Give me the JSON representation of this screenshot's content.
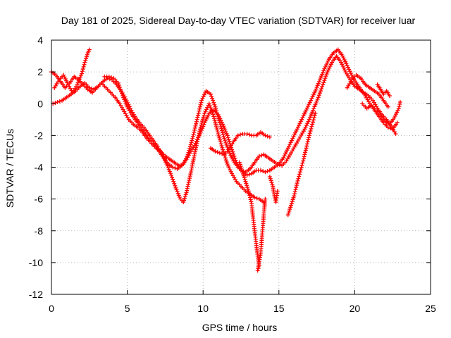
{
  "chart_data": {
    "type": "scatter",
    "title": "Day 181 of 2025, Sidereal Day-to-day VTEC variation (SDTVAR) for receiver luar",
    "xlabel": "GPS time / hours",
    "ylabel": "SDTVAR / TECUs",
    "xlim": [
      0,
      25
    ],
    "ylim": [
      -12,
      4
    ],
    "xticks": [
      0,
      5,
      10,
      15,
      20,
      25
    ],
    "yticks": [
      -12,
      -10,
      -8,
      -6,
      -4,
      -2,
      0,
      2,
      4
    ],
    "grid": true,
    "marker": "+",
    "color": "#ff0000",
    "series": [
      {
        "points": [
          [
            0.0,
            2.0
          ],
          [
            0.3,
            1.8
          ],
          [
            0.6,
            1.4
          ],
          [
            0.9,
            1.0
          ],
          [
            1.2,
            1.3
          ],
          [
            1.5,
            1.7
          ],
          [
            1.8,
            1.5
          ],
          [
            2.1,
            1.2
          ],
          [
            2.4,
            0.9
          ],
          [
            2.7,
            0.7
          ],
          [
            3.0,
            1.0
          ],
          [
            3.3,
            1.3
          ],
          [
            3.6,
            1.0
          ],
          [
            3.9,
            0.7
          ],
          [
            4.2,
            0.4
          ],
          [
            4.5,
            0.0
          ],
          [
            4.8,
            -0.5
          ],
          [
            5.1,
            -1.0
          ],
          [
            5.4,
            -1.3
          ],
          [
            5.7,
            -1.5
          ],
          [
            6.0,
            -1.8
          ],
          [
            6.3,
            -2.2
          ],
          [
            6.6,
            -2.5
          ],
          [
            6.9,
            -2.8
          ],
          [
            7.2,
            -3.0
          ],
          [
            7.5,
            -3.3
          ],
          [
            7.8,
            -3.5
          ],
          [
            8.1,
            -3.7
          ],
          [
            8.4,
            -3.9
          ],
          [
            8.7,
            -3.8
          ],
          [
            9.0,
            -3.2
          ],
          [
            9.3,
            -2.2
          ],
          [
            9.6,
            -1.0
          ],
          [
            9.9,
            0.2
          ],
          [
            10.2,
            0.8
          ],
          [
            10.5,
            0.6
          ],
          [
            10.8,
            -0.2
          ],
          [
            11.1,
            -1.2
          ],
          [
            11.4,
            -2.2
          ],
          [
            11.7,
            -3.0
          ],
          [
            12.0,
            -3.6
          ],
          [
            12.3,
            -4.0
          ],
          [
            12.6,
            -4.3
          ],
          [
            12.9,
            -4.5
          ],
          [
            13.2,
            -4.4
          ],
          [
            13.5,
            -4.2
          ],
          [
            13.8,
            -4.2
          ],
          [
            14.1,
            -4.3
          ],
          [
            14.4,
            -4.2
          ],
          [
            14.7,
            -4.0
          ],
          [
            15.0,
            -3.8
          ],
          [
            15.3,
            -3.4
          ],
          [
            15.6,
            -2.8
          ],
          [
            15.9,
            -2.2
          ],
          [
            16.2,
            -1.6
          ],
          [
            16.5,
            -1.0
          ],
          [
            16.8,
            -0.4
          ],
          [
            17.1,
            0.2
          ],
          [
            17.4,
            0.8
          ],
          [
            17.7,
            1.5
          ],
          [
            18.0,
            2.2
          ],
          [
            18.3,
            2.8
          ],
          [
            18.6,
            3.2
          ],
          [
            18.9,
            3.4
          ],
          [
            19.2,
            3.0
          ],
          [
            19.5,
            2.4
          ],
          [
            19.8,
            1.8
          ],
          [
            20.1,
            1.3
          ],
          [
            20.4,
            0.9
          ],
          [
            20.7,
            0.5
          ],
          [
            21.0,
            0.0
          ],
          [
            21.3,
            -0.4
          ],
          [
            21.6,
            -0.8
          ],
          [
            21.9,
            -1.2
          ],
          [
            22.2,
            -1.5
          ],
          [
            22.5,
            -1.6
          ],
          [
            22.8,
            -1.2
          ]
        ]
      },
      {
        "points": [
          [
            0.1,
            0.0
          ],
          [
            0.4,
            0.1
          ],
          [
            0.7,
            0.2
          ],
          [
            1.0,
            0.4
          ],
          [
            1.3,
            0.6
          ],
          [
            1.6,
            0.8
          ],
          [
            1.9,
            1.1
          ],
          [
            2.2,
            1.3
          ],
          [
            2.5,
            1.0
          ],
          [
            2.8,
            0.9
          ],
          [
            3.1,
            1.1
          ],
          [
            3.4,
            1.4
          ],
          [
            3.7,
            1.6
          ],
          [
            4.0,
            1.5
          ],
          [
            4.3,
            1.2
          ],
          [
            4.6,
            0.8
          ],
          [
            4.9,
            0.3
          ],
          [
            5.2,
            -0.3
          ],
          [
            5.5,
            -0.8
          ],
          [
            5.8,
            -1.2
          ],
          [
            6.1,
            -1.5
          ],
          [
            6.4,
            -1.9
          ],
          [
            6.7,
            -2.3
          ],
          [
            7.0,
            -2.7
          ],
          [
            7.3,
            -3.2
          ],
          [
            7.6,
            -3.8
          ],
          [
            7.9,
            -4.5
          ],
          [
            8.2,
            -5.3
          ],
          [
            8.5,
            -6.0
          ],
          [
            8.7,
            -6.2
          ],
          [
            8.9,
            -5.6
          ],
          [
            9.2,
            -4.3
          ],
          [
            9.5,
            -2.9
          ],
          [
            9.8,
            -1.6
          ],
          [
            10.1,
            -0.6
          ],
          [
            10.4,
            0.0
          ],
          [
            10.7,
            -0.8
          ],
          [
            11.0,
            -1.9
          ],
          [
            11.3,
            -2.9
          ],
          [
            11.6,
            -3.8
          ],
          [
            11.9,
            -4.4
          ],
          [
            12.2,
            -4.9
          ],
          [
            12.5,
            -5.2
          ],
          [
            12.8,
            -5.5
          ],
          [
            13.1,
            -5.7
          ],
          [
            13.4,
            -5.9
          ],
          [
            13.7,
            -6.0
          ],
          [
            14.0,
            -6.2
          ]
        ]
      },
      {
        "points": [
          [
            0.2,
            1.0
          ],
          [
            0.5,
            1.5
          ],
          [
            0.8,
            1.8
          ],
          [
            1.1,
            1.2
          ],
          [
            1.4,
            0.7
          ],
          [
            1.7,
            1.2
          ],
          [
            2.0,
            1.9
          ],
          [
            2.2,
            2.6
          ],
          [
            2.4,
            3.2
          ],
          [
            2.5,
            3.4
          ]
        ]
      },
      {
        "points": [
          [
            3.5,
            1.7
          ],
          [
            3.8,
            1.7
          ],
          [
            4.1,
            1.6
          ],
          [
            4.4,
            1.3
          ],
          [
            4.7,
            0.5
          ],
          [
            5.0,
            -0.2
          ],
          [
            5.3,
            -0.7
          ],
          [
            5.6,
            -1.1
          ],
          [
            5.9,
            -1.5
          ],
          [
            6.2,
            -1.9
          ],
          [
            6.5,
            -2.3
          ],
          [
            6.8,
            -2.6
          ],
          [
            7.1,
            -3.0
          ],
          [
            7.4,
            -3.4
          ],
          [
            7.7,
            -3.8
          ],
          [
            8.0,
            -4.0
          ],
          [
            8.3,
            -4.1
          ],
          [
            8.6,
            -3.9
          ],
          [
            8.9,
            -3.5
          ],
          [
            9.2,
            -3.0
          ],
          [
            9.5,
            -2.5
          ],
          [
            9.8,
            -1.9
          ],
          [
            10.1,
            -1.2
          ],
          [
            10.4,
            -0.6
          ],
          [
            10.7,
            -0.4
          ],
          [
            11.0,
            -0.7
          ],
          [
            11.3,
            -1.3
          ],
          [
            11.6,
            -2.0
          ],
          [
            11.9,
            -2.9
          ],
          [
            12.2,
            -3.7
          ],
          [
            12.5,
            -4.2
          ],
          [
            12.8,
            -4.3
          ],
          [
            13.1,
            -4.1
          ],
          [
            13.4,
            -3.7
          ],
          [
            13.7,
            -3.3
          ],
          [
            14.0,
            -3.2
          ],
          [
            14.3,
            -3.4
          ],
          [
            14.6,
            -3.6
          ],
          [
            14.9,
            -3.8
          ],
          [
            15.2,
            -3.9
          ],
          [
            15.5,
            -3.6
          ],
          [
            15.8,
            -3.1
          ],
          [
            16.1,
            -2.6
          ],
          [
            16.4,
            -2.1
          ],
          [
            16.7,
            -1.6
          ],
          [
            17.0,
            -1.0
          ],
          [
            17.3,
            -0.3
          ],
          [
            17.6,
            0.4
          ],
          [
            17.9,
            1.2
          ],
          [
            18.2,
            2.0
          ],
          [
            18.5,
            2.6
          ],
          [
            18.8,
            3.0
          ],
          [
            19.1,
            2.6
          ],
          [
            19.4,
            2.0
          ],
          [
            19.7,
            1.5
          ],
          [
            20.0,
            1.1
          ],
          [
            20.3,
            0.9
          ],
          [
            20.6,
            0.7
          ],
          [
            20.9,
            0.5
          ],
          [
            21.2,
            0.2
          ],
          [
            21.5,
            -0.3
          ],
          [
            21.8,
            -0.7
          ],
          [
            22.1,
            -1.0
          ],
          [
            22.4,
            -1.4
          ],
          [
            22.7,
            -1.9
          ]
        ]
      },
      {
        "points": [
          [
            10.5,
            -2.8
          ],
          [
            10.8,
            -3.0
          ],
          [
            11.1,
            -3.1
          ],
          [
            11.4,
            -3.2
          ],
          [
            11.7,
            -2.9
          ],
          [
            12.0,
            -2.4
          ],
          [
            12.3,
            -2.0
          ],
          [
            12.6,
            -1.9
          ],
          [
            12.9,
            -1.9
          ],
          [
            13.2,
            -2.0
          ],
          [
            13.5,
            -2.0
          ],
          [
            13.8,
            -1.8
          ],
          [
            14.1,
            -2.0
          ],
          [
            14.4,
            -2.1
          ]
        ]
      },
      {
        "points": [
          [
            12.4,
            -3.7
          ],
          [
            12.6,
            -4.3
          ],
          [
            12.8,
            -4.9
          ],
          [
            13.0,
            -5.5
          ],
          [
            13.2,
            -6.3
          ],
          [
            13.3,
            -7.2
          ],
          [
            13.4,
            -8.0
          ],
          [
            13.5,
            -8.8
          ],
          [
            13.6,
            -9.6
          ],
          [
            13.7,
            -10.2
          ],
          [
            13.6,
            -10.5
          ],
          [
            13.8,
            -9.4
          ],
          [
            13.9,
            -8.2
          ],
          [
            14.0,
            -7.0
          ],
          [
            14.1,
            -6.0
          ]
        ]
      },
      {
        "points": [
          [
            14.4,
            -4.6
          ],
          [
            14.6,
            -5.2
          ],
          [
            14.7,
            -5.8
          ],
          [
            14.8,
            -6.2
          ],
          [
            14.9,
            -5.5
          ]
        ]
      },
      {
        "points": [
          [
            15.6,
            -7.0
          ],
          [
            15.8,
            -6.4
          ],
          [
            16.0,
            -5.8
          ],
          [
            16.2,
            -5.0
          ],
          [
            16.4,
            -4.3
          ],
          [
            16.6,
            -3.6
          ],
          [
            16.8,
            -2.8
          ],
          [
            17.0,
            -2.0
          ],
          [
            17.2,
            -1.3
          ],
          [
            17.4,
            -0.6
          ]
        ]
      },
      {
        "points": [
          [
            19.5,
            1.0
          ],
          [
            19.8,
            1.5
          ],
          [
            20.1,
            1.8
          ],
          [
            20.4,
            1.6
          ],
          [
            20.7,
            1.2
          ],
          [
            21.0,
            1.0
          ],
          [
            21.3,
            0.8
          ],
          [
            21.6,
            0.6
          ],
          [
            21.9,
            0.2
          ],
          [
            22.2,
            -0.2
          ]
        ]
      },
      {
        "points": [
          [
            20.5,
            0.0
          ],
          [
            20.8,
            -0.3
          ],
          [
            21.1,
            -0.1
          ],
          [
            21.4,
            -0.4
          ],
          [
            21.7,
            -0.7
          ],
          [
            22.0,
            -1.1
          ],
          [
            22.3,
            -1.3
          ],
          [
            22.6,
            -0.9
          ],
          [
            22.9,
            -0.3
          ],
          [
            23.0,
            0.1
          ]
        ]
      },
      {
        "points": [
          [
            21.5,
            1.2
          ],
          [
            21.7,
            0.9
          ],
          [
            21.9,
            0.6
          ],
          [
            22.1,
            0.8
          ],
          [
            22.3,
            0.5
          ]
        ]
      }
    ]
  }
}
